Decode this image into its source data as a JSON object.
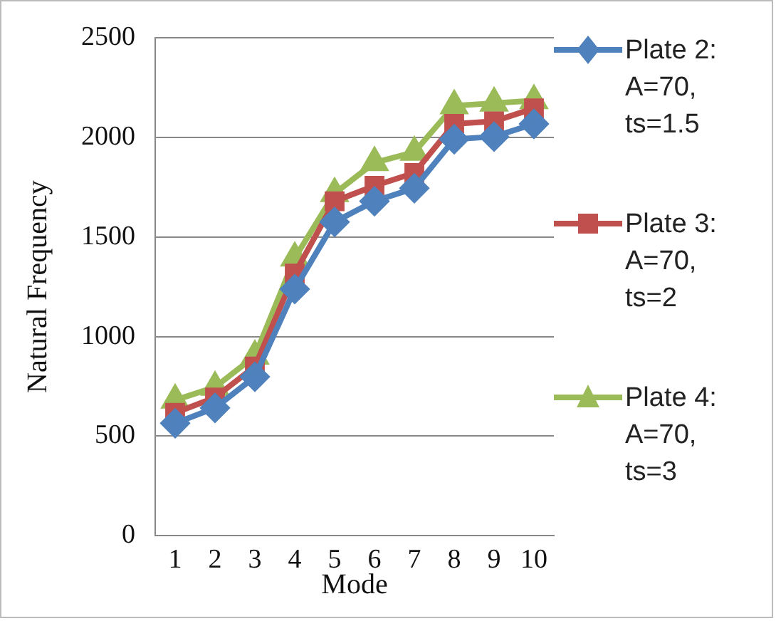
{
  "chart_data": {
    "type": "line",
    "xlabel": "Mode",
    "ylabel": "Natural Frequency",
    "categories": [
      "1",
      "2",
      "3",
      "4",
      "5",
      "6",
      "7",
      "8",
      "9",
      "10"
    ],
    "series": [
      {
        "name": "Plate 2: A=70, ts=1.5",
        "color": "#4f81bd",
        "marker": "diamond",
        "values": [
          565,
          642,
          798,
          1238,
          1575,
          1679,
          1744,
          1990,
          2003,
          2067
        ]
      },
      {
        "name": "Plate 3: A=70, ts=2",
        "color": "#c0504d",
        "marker": "square",
        "values": [
          617,
          694,
          850,
          1316,
          1679,
          1756,
          1821,
          2067,
          2080,
          2145
        ]
      },
      {
        "name": "Plate 4: A=70, ts=3",
        "color": "#9bbb59",
        "marker": "triangle",
        "values": [
          681,
          746,
          902,
          1394,
          1718,
          1873,
          1925,
          2158,
          2171,
          2184
        ]
      }
    ],
    "ylim": [
      0,
      2500
    ],
    "yticks": [
      0,
      500,
      1000,
      1500,
      2000,
      2500
    ],
    "grid": "y",
    "legend": "right",
    "line_style": "solid"
  }
}
